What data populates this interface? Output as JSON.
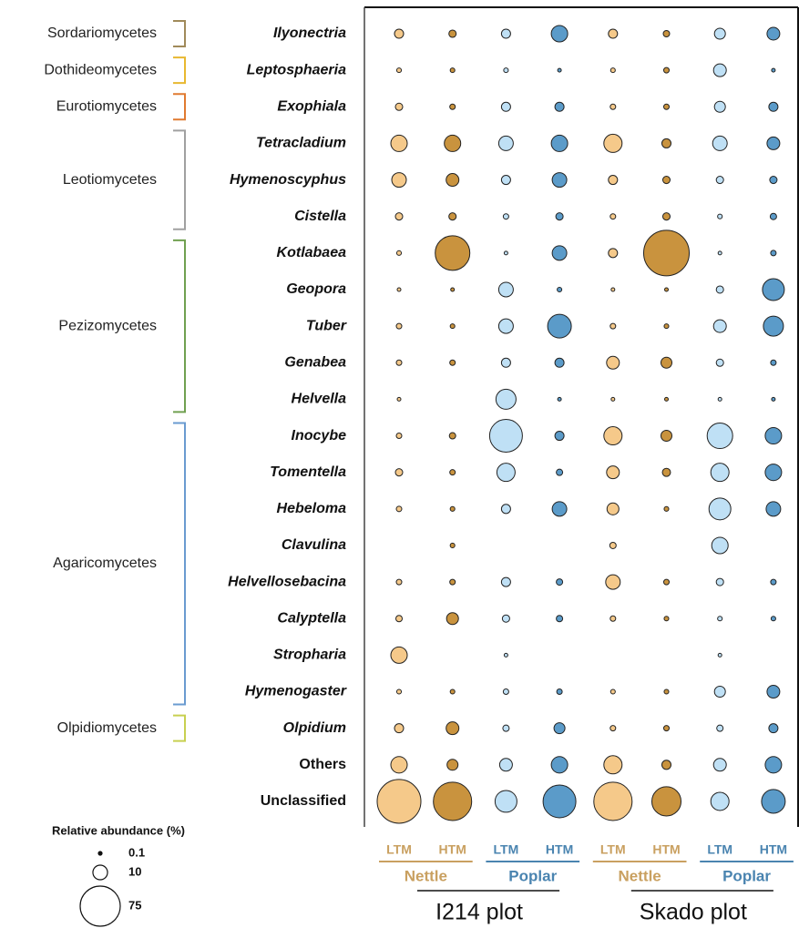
{
  "chart_data": {
    "type": "bubble",
    "categories": [
      "Ilyonectria",
      "Leptosphaeria",
      "Exophiala",
      "Tetracladium",
      "Hymenoscyphus",
      "Cistella",
      "Kotlabaea",
      "Geopora",
      "Tuber",
      "Genabea",
      "Helvella",
      "Inocybe",
      "Tomentella",
      "Hebeloma",
      "Clavulina",
      "Helvellosebacina",
      "Calyptella",
      "Stropharia",
      "Hymenogaster",
      "Olpidium",
      "Others",
      "Unclassified"
    ],
    "classes": [
      {
        "name": "Sordariomycetes",
        "color": "#a08a5a"
      },
      {
        "name": "Dothideomycetes",
        "color": "#e8b830"
      },
      {
        "name": "Eurotiomycetes",
        "color": "#e07a30"
      },
      {
        "name": "Leotiomycetes",
        "color": "#a0a0a0"
      },
      {
        "name": "Pezizomycetes",
        "color": "#70a050"
      },
      {
        "name": "Agaricomycetes",
        "color": "#6a9bd0"
      },
      {
        "name": "Olpidiomycetes",
        "color": "#c8d050"
      }
    ],
    "groups": [
      {
        "name": "Nettle",
        "color": "#c9a060"
      },
      {
        "name": "Poplar",
        "color": "#4a84b0"
      },
      {
        "name": "Nettle",
        "color": "#c9a060"
      },
      {
        "name": "Poplar",
        "color": "#4a84b0"
      }
    ],
    "plots": [
      "I214 plot",
      "Skado plot"
    ],
    "series": [
      {
        "name": "LTM",
        "color": "#f5c98a",
        "values": [
          3.9,
          1.0,
          2.5,
          12.6,
          9.9,
          2.5,
          1.0,
          0.6,
          1.4,
          1.4,
          0.6,
          1.4,
          2.5,
          1.4,
          null,
          1.4,
          1.9,
          12.6,
          1.0,
          3.9,
          12.6,
          89.3
        ]
      },
      {
        "name": "HTM",
        "color": "#c9933e",
        "values": [
          2.5,
          1.0,
          1.4,
          12.6,
          7.6,
          2.5,
          56.0,
          0.6,
          1.0,
          1.4,
          null,
          1.9,
          1.4,
          1.0,
          1.0,
          1.4,
          6.6,
          null,
          1.0,
          7.6,
          5.6,
          68.4
        ]
      },
      {
        "name": "LTM",
        "color": "#bfe0f5",
        "values": [
          3.9,
          1.0,
          3.9,
          9.9,
          3.9,
          1.4,
          0.6,
          9.9,
          9.9,
          3.9,
          18.8,
          50.2,
          15.5,
          3.9,
          null,
          3.9,
          2.5,
          0.6,
          1.4,
          1.9,
          7.6,
          22.3
        ]
      },
      {
        "name": "HTM",
        "color": "#5b9bc9",
        "values": [
          12.6,
          0.6,
          3.9,
          12.6,
          9.9,
          2.5,
          9.9,
          1.0,
          26.2,
          3.9,
          0.6,
          3.9,
          1.9,
          9.9,
          null,
          1.9,
          1.9,
          null,
          1.4,
          5.6,
          12.6,
          50.2
        ]
      },
      {
        "name": "LTM",
        "color": "#f5c98a",
        "values": [
          3.9,
          1.0,
          1.4,
          15.5,
          3.9,
          1.4,
          3.9,
          0.6,
          1.4,
          7.6,
          0.6,
          15.5,
          7.6,
          6.6,
          1.9,
          9.9,
          1.4,
          null,
          1.0,
          1.4,
          15.5,
          68.4
        ]
      },
      {
        "name": "HTM",
        "color": "#c9933e",
        "values": [
          1.9,
          1.4,
          1.4,
          3.9,
          2.5,
          2.5,
          96.9,
          0.6,
          1.0,
          5.6,
          0.6,
          5.6,
          3.1,
          1.0,
          null,
          1.4,
          1.0,
          null,
          1.0,
          1.4,
          3.9,
          39.7
        ]
      },
      {
        "name": "LTM",
        "color": "#bfe0f5",
        "values": [
          5.6,
          7.6,
          5.6,
          9.9,
          2.5,
          1.0,
          0.6,
          2.5,
          7.6,
          2.5,
          0.6,
          30.4,
          15.5,
          22.3,
          12.6,
          2.5,
          1.0,
          0.6,
          5.6,
          1.9,
          7.6,
          15.5
        ]
      },
      {
        "name": "HTM",
        "color": "#5b9bc9",
        "values": [
          7.6,
          0.6,
          3.9,
          7.6,
          2.5,
          1.9,
          1.4,
          22.3,
          18.8,
          1.4,
          0.6,
          12.6,
          12.6,
          9.9,
          null,
          1.4,
          1.0,
          null,
          7.6,
          3.9,
          12.6,
          26.2
        ]
      }
    ],
    "legend": {
      "title": "Relative abundance (%)",
      "sizes": [
        0.1,
        10,
        75
      ]
    }
  }
}
